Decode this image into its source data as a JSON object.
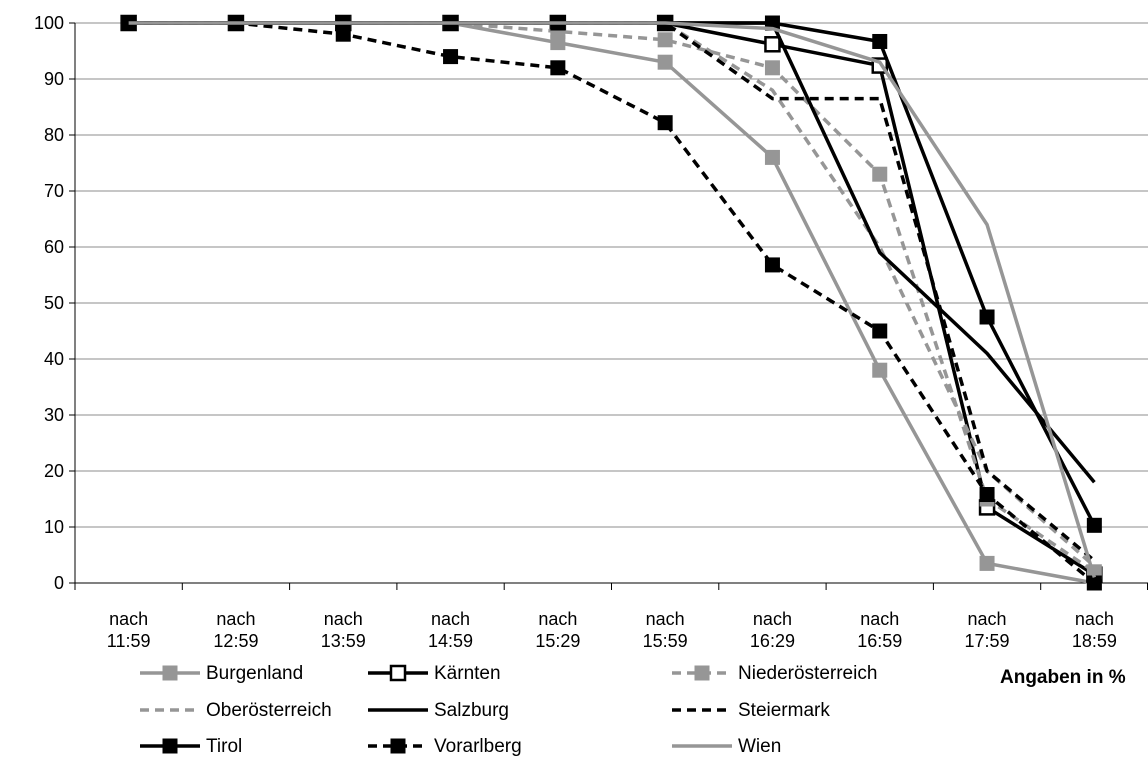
{
  "chart_data": {
    "type": "line",
    "title": "",
    "xlabel": "",
    "ylabel": "",
    "ylim": [
      0,
      100
    ],
    "yticks": [
      0,
      10,
      20,
      30,
      40,
      50,
      60,
      70,
      80,
      90,
      100
    ],
    "grid": true,
    "legend_position": "bottom",
    "note": "Angaben in %",
    "categories": [
      [
        "nach",
        "11:59"
      ],
      [
        "nach",
        "12:59"
      ],
      [
        "nach",
        "13:59"
      ],
      [
        "nach",
        "14:59"
      ],
      [
        "nach",
        "15:29"
      ],
      [
        "nach",
        "15:59"
      ],
      [
        "nach",
        "16:29"
      ],
      [
        "nach",
        "16:59"
      ],
      [
        "nach",
        "17:59"
      ],
      [
        "nach",
        "18:59"
      ]
    ],
    "series": [
      {
        "name": "Burgenland",
        "color": "#969696",
        "dash": false,
        "marker": "square-filled",
        "values": [
          100,
          100,
          100,
          100,
          96.5,
          93,
          76,
          38,
          3.5,
          0
        ]
      },
      {
        "name": "Kärnten",
        "color": "#000000",
        "dash": false,
        "marker": "square-open",
        "values": [
          100,
          100,
          100,
          100,
          100,
          100,
          96.2,
          92.4,
          13.5,
          1.5
        ]
      },
      {
        "name": "Niederösterreich",
        "color": "#969696",
        "dash": true,
        "marker": "square-filled",
        "values": [
          100,
          100,
          100,
          100,
          98.5,
          97,
          92,
          73,
          15,
          2
        ]
      },
      {
        "name": "Oberösterreich",
        "color": "#969696",
        "dash": true,
        "marker": "none",
        "values": [
          100,
          100,
          100,
          100,
          100,
          100,
          88,
          60,
          20,
          3
        ]
      },
      {
        "name": "Salzburg",
        "color": "#000000",
        "dash": false,
        "marker": "none",
        "values": [
          100,
          100,
          100,
          100,
          100,
          100,
          100,
          59,
          41,
          18
        ]
      },
      {
        "name": "Steiermark",
        "color": "#000000",
        "dash": true,
        "marker": "none",
        "values": [
          100,
          100,
          100,
          100,
          100,
          100,
          86.5,
          86.5,
          20,
          4
        ]
      },
      {
        "name": "Tirol",
        "color": "#000000",
        "dash": false,
        "marker": "square-filled",
        "values": [
          100,
          100,
          100,
          100,
          100,
          100,
          100,
          96.7,
          47.5,
          10.3
        ]
      },
      {
        "name": "Vorarlberg",
        "color": "#000000",
        "dash": true,
        "marker": "square-filled",
        "values": [
          100,
          100,
          98,
          94,
          92,
          82.2,
          56.8,
          45,
          15.8,
          0
        ]
      },
      {
        "name": "Wien",
        "color": "#969696",
        "dash": false,
        "marker": "none",
        "values": [
          100,
          100,
          100,
          100,
          100,
          100,
          99,
          93,
          64,
          1
        ]
      }
    ]
  }
}
